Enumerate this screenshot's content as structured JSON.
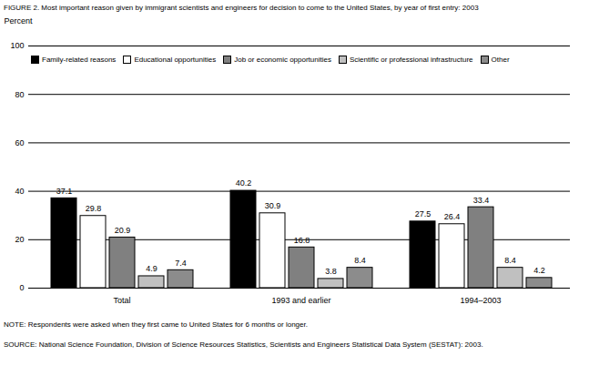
{
  "chart_data": {
    "type": "bar",
    "title": "FIGURE 2.  Most important reason given by immigrant scientists and engineers for decision to come to the United States, by year of first entry: 2003",
    "y_label": "Percent",
    "categories": [
      "Total",
      "1993 and earlier",
      "1994–2003"
    ],
    "series": [
      {
        "name": "Family-related reasons",
        "color": "#000000",
        "values": [
          37.1,
          40.2,
          27.5
        ]
      },
      {
        "name": "Educational opportunities",
        "color": "#ffffff",
        "values": [
          29.8,
          30.9,
          26.4
        ]
      },
      {
        "name": "Job or economic opportunities",
        "color": "#808080",
        "values": [
          20.9,
          16.8,
          33.4
        ]
      },
      {
        "name": "Scientific or professional infrastructure",
        "color": "#c0c0c0",
        "values": [
          4.9,
          3.8,
          8.4
        ]
      },
      {
        "name": "Other",
        "color": "#8c8c8c",
        "values": [
          7.4,
          8.4,
          4.2
        ]
      }
    ],
    "ylim": [
      0,
      100
    ],
    "yticks": [
      0,
      20,
      40,
      60,
      80,
      100
    ],
    "grid": true,
    "legend": "top",
    "data_labels": true,
    "notes": [
      "NOTE:  Respondents were asked when they first came to United States for 6 months or longer.",
      "SOURCE:  National Science Foundation, Division of Science Resources Statistics, Scientists and Engineers Statistical Data System (SESTAT): 2003."
    ]
  }
}
